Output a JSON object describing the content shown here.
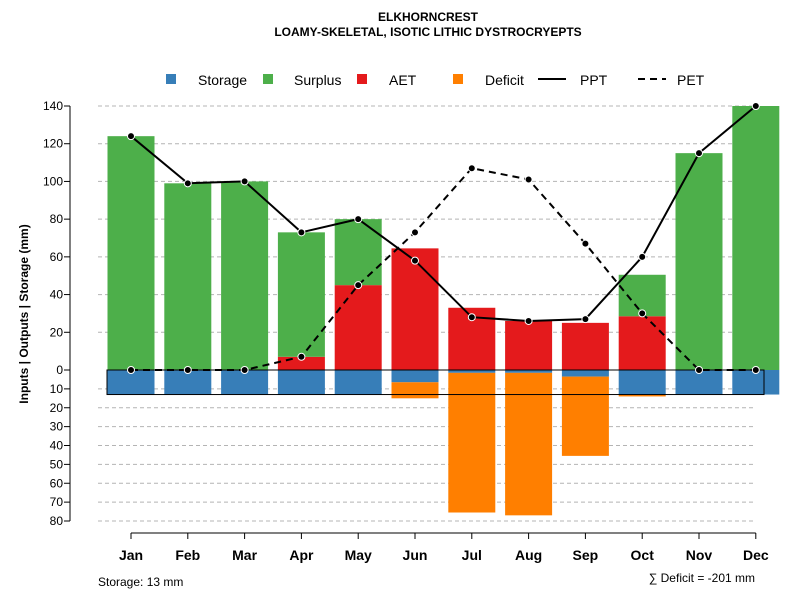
{
  "chart_data": {
    "type": "bar",
    "title": "ELKHORNCREST",
    "subtitle": "LOAMY-SKELETAL, ISOTIC LITHIC DYSTROCRYEPTS",
    "ylabel": "Inputs | Outputs | Storage    (mm)",
    "categories": [
      "Jan",
      "Feb",
      "Mar",
      "Apr",
      "May",
      "Jun",
      "Jul",
      "Aug",
      "Sep",
      "Oct",
      "Nov",
      "Dec"
    ],
    "upper_ticks": [
      0,
      20,
      40,
      60,
      80,
      100,
      120,
      140
    ],
    "lower_ticks": [
      10,
      20,
      30,
      40,
      50,
      60,
      70,
      80
    ],
    "ylim": [
      -80,
      140
    ],
    "storage_capacity": 13,
    "series": [
      {
        "name": "Storage",
        "color": "#377EB8",
        "values": [
          13,
          13,
          13,
          13,
          13,
          6.5,
          1.5,
          1.5,
          3.5,
          13,
          13,
          13
        ]
      },
      {
        "name": "Surplus",
        "color": "#4DAF4A",
        "values": [
          124,
          99,
          100,
          66,
          35,
          0,
          0,
          0,
          0,
          22,
          115,
          140
        ]
      },
      {
        "name": "AET",
        "color": "#E41A1C",
        "values": [
          0,
          0,
          0,
          7,
          45,
          64.5,
          33,
          26,
          25,
          28.5,
          0,
          0
        ]
      },
      {
        "name": "Deficit",
        "color": "#FF7F00",
        "values": [
          0,
          0,
          0,
          0,
          0,
          8.5,
          74,
          75.5,
          42,
          1,
          0,
          0
        ]
      },
      {
        "name": "PPT",
        "color": "#000000",
        "values": [
          124,
          99,
          100,
          73,
          80,
          58,
          28,
          26,
          27,
          60,
          115,
          140
        ]
      },
      {
        "name": "PET",
        "color": "#000000",
        "values": [
          0,
          0,
          0,
          7,
          45,
          73,
          107,
          101,
          67,
          30,
          0,
          0
        ]
      }
    ],
    "legend": [
      "Storage",
      "Surplus",
      "AET",
      "Deficit",
      "PPT",
      "PET"
    ],
    "footer_left": "Storage: 13 mm",
    "footer_right": "∑ Deficit = -201 mm"
  }
}
